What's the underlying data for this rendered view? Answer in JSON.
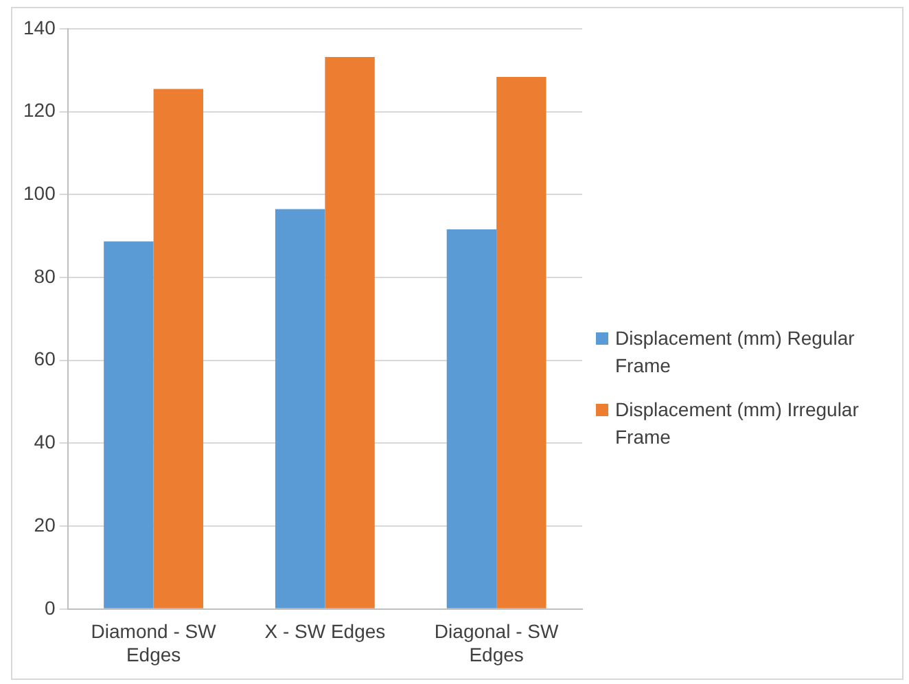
{
  "chart_data": {
    "type": "bar",
    "categories": [
      "Diamond - SW Edges",
      "X - SW Edges",
      "Diagonal - SW Edges"
    ],
    "series": [
      {
        "name": "Displacement (mm) Regular Frame",
        "color": "#5b9bd5",
        "values": [
          88.7,
          96.5,
          91.6
        ]
      },
      {
        "name": "Displacement (mm) Irregular Frame",
        "color": "#ed7d31",
        "values": [
          125.5,
          133.2,
          128.4
        ]
      }
    ],
    "ylim": [
      0,
      140
    ],
    "yticks": [
      0,
      20,
      40,
      60,
      80,
      100,
      120,
      140
    ],
    "grid": "y",
    "legend": "right"
  }
}
